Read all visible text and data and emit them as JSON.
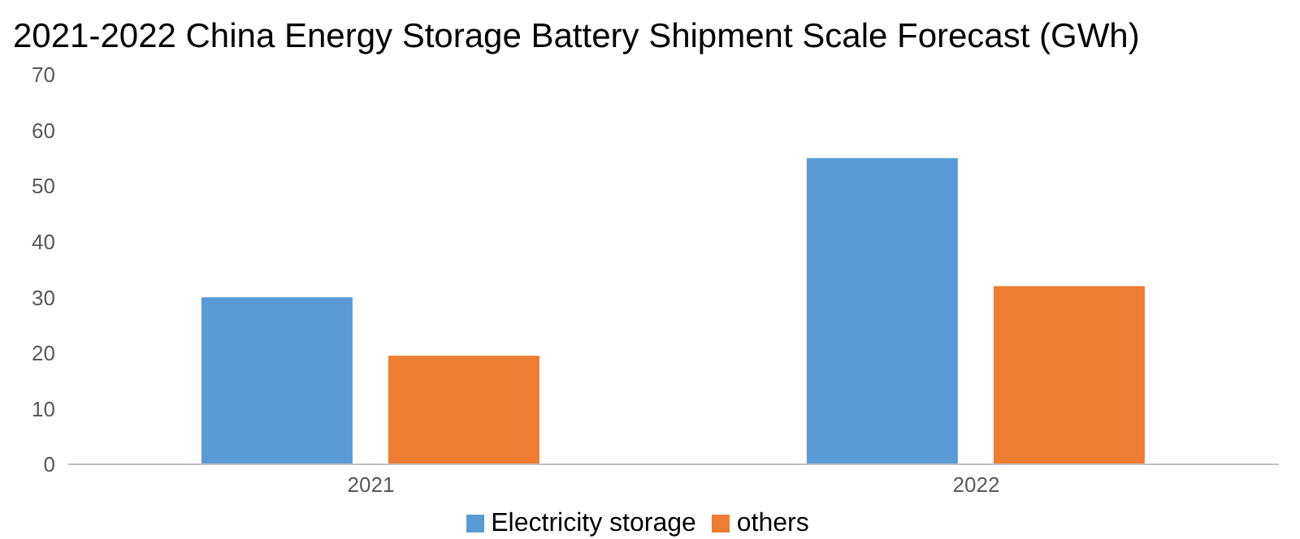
{
  "chart_data": {
    "type": "bar",
    "title": "2021-2022 China Energy Storage Battery Shipment Scale Forecast (GWh)",
    "categories": [
      "2021",
      "2022"
    ],
    "series": [
      {
        "name": "Electricity storage",
        "color": "#5b9bd5",
        "values": [
          30,
          55
        ]
      },
      {
        "name": "others",
        "color": "#ed7d31",
        "values": [
          19.5,
          32
        ]
      }
    ],
    "ylim": [
      0,
      70
    ],
    "yticks": [
      0,
      10,
      20,
      30,
      40,
      50,
      60,
      70
    ],
    "grid": false,
    "legend": "bottom"
  }
}
